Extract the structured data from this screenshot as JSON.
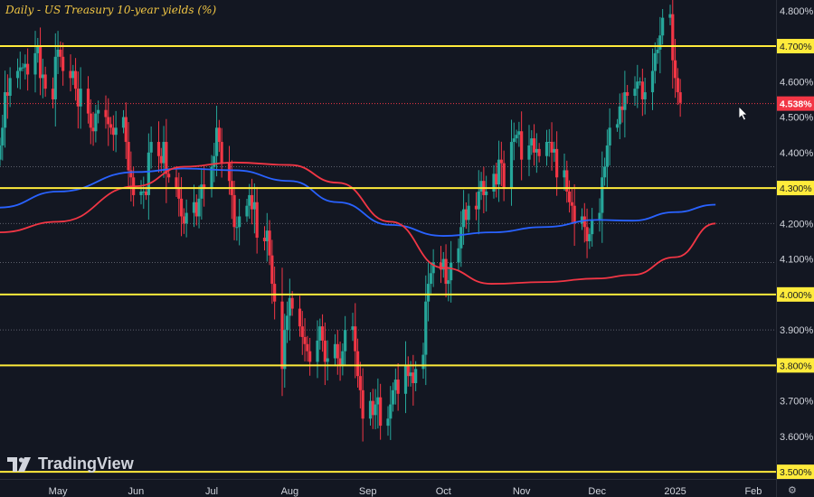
{
  "chart_data": {
    "type": "candlestick",
    "title": "Daily - US Treasury 10-year yields (%)",
    "ylim": [
      3.48,
      4.83
    ],
    "y_ticks": [
      "4.800%",
      "4.700%",
      "4.600%",
      "4.500%",
      "4.400%",
      "4.300%",
      "4.200%",
      "4.100%",
      "4.000%",
      "3.900%",
      "3.800%",
      "3.700%",
      "3.600%",
      "3.500%"
    ],
    "y_tick_values": [
      4.8,
      4.7,
      4.6,
      4.5,
      4.4,
      4.3,
      4.2,
      4.1,
      4.0,
      3.9,
      3.8,
      3.7,
      3.6,
      3.5
    ],
    "x_tick_labels": [
      "May",
      "Jun",
      "Jul",
      "Aug",
      "Sep",
      "Oct",
      "Nov",
      "Dec",
      "2025",
      "Feb"
    ],
    "x_tick_dates": [
      "2024-05-01",
      "2024-06-01",
      "2024-07-01",
      "2024-08-01",
      "2024-09-01",
      "2024-10-01",
      "2024-11-01",
      "2024-12-01",
      "2025-01-01",
      "2025-02-01"
    ],
    "x_range_dates": [
      "2024-04-08",
      "2025-02-10"
    ],
    "horizontal_levels": [
      {
        "value": 4.7,
        "label": "4.700%",
        "color": "#ffeb3b"
      },
      {
        "value": 4.3,
        "label": "4.300%",
        "color": "#ffeb3b"
      },
      {
        "value": 4.0,
        "label": "4.000%",
        "color": "#ffeb3b"
      },
      {
        "value": 3.8,
        "label": "3.800%",
        "color": "#ffeb3b"
      },
      {
        "value": 3.5,
        "label": "3.500%",
        "color": "#ffeb3b"
      }
    ],
    "dotted_levels": [
      4.36,
      4.2,
      4.09,
      3.9
    ],
    "current": {
      "value": 4.538,
      "label": "4.538%",
      "color": "#f23645"
    },
    "colors": {
      "up": "#26a69a",
      "down": "#f23645",
      "ma_blue": "#2962ff",
      "ma_red": "#f23645"
    },
    "ma_blue": {
      "x": [
        "2024-04-08",
        "2024-05-01",
        "2024-06-01",
        "2024-06-20",
        "2024-07-10",
        "2024-08-01",
        "2024-08-20",
        "2024-09-10",
        "2024-10-01",
        "2024-10-20",
        "2024-11-10",
        "2024-12-01",
        "2024-12-15",
        "2025-01-01",
        "2025-01-17"
      ],
      "y": [
        4.245,
        4.29,
        4.345,
        4.355,
        4.35,
        4.32,
        4.26,
        4.196,
        4.165,
        4.175,
        4.19,
        4.21,
        4.208,
        4.232,
        4.253
      ]
    },
    "ma_red": {
      "x": [
        "2024-04-08",
        "2024-05-01",
        "2024-06-01",
        "2024-06-20",
        "2024-07-10",
        "2024-08-01",
        "2024-08-20",
        "2024-09-10",
        "2024-10-01",
        "2024-10-20",
        "2024-11-10",
        "2024-12-01",
        "2024-12-15",
        "2025-01-01",
        "2025-01-17"
      ],
      "y": [
        4.175,
        4.205,
        4.305,
        4.36,
        4.372,
        4.365,
        4.315,
        4.205,
        4.075,
        4.03,
        4.035,
        4.045,
        4.055,
        4.105,
        4.2
      ]
    },
    "candles": {
      "start_date": "2024-04-08",
      "trading_days_only": true,
      "close": [
        4.42,
        4.47,
        4.57,
        4.56,
        4.61,
        4.63,
        4.64,
        4.64,
        4.65,
        4.62,
        4.68,
        4.7,
        4.61,
        4.62,
        4.58,
        4.55,
        4.67,
        4.69,
        4.67,
        4.63,
        4.61,
        4.63,
        4.58,
        4.53,
        4.58,
        4.51,
        4.47,
        4.46,
        4.51,
        4.52,
        4.5,
        4.48,
        4.47,
        4.45,
        4.47,
        4.5,
        4.43,
        4.35,
        4.33,
        4.28,
        4.29,
        4.29,
        4.28,
        4.4,
        4.43,
        4.39,
        4.37,
        4.43,
        4.34,
        4.33,
        4.3,
        4.27,
        4.22,
        4.2,
        4.23,
        4.26,
        4.22,
        4.27,
        4.31,
        4.3,
        4.36,
        4.39,
        4.47,
        4.43,
        4.37,
        4.32,
        4.28,
        4.19,
        4.19,
        4.22,
        4.25,
        4.28,
        4.24,
        4.26,
        4.16,
        4.15,
        4.18,
        4.11,
        4.03,
        3.98,
        3.79,
        3.9,
        3.94,
        3.99,
        3.96,
        3.91,
        3.88,
        3.86,
        3.84,
        3.81,
        3.87,
        3.91,
        3.87,
        3.81,
        3.82,
        3.86,
        3.82,
        3.8,
        3.84,
        3.9,
        3.91,
        3.84,
        3.77,
        3.73,
        3.65,
        3.7,
        3.66,
        3.69,
        3.71,
        3.63,
        3.65,
        3.69,
        3.73,
        3.76,
        3.72,
        3.8,
        3.77,
        3.78,
        3.75,
        3.79,
        3.83,
        3.98,
        4.03,
        4.06,
        4.09,
        4.07,
        4.1,
        4.03,
        4.04,
        4.09,
        4.13,
        4.19,
        4.24,
        4.21,
        4.25,
        4.24,
        4.29,
        4.32,
        4.28,
        4.29,
        4.34,
        4.31,
        4.38,
        4.37,
        4.3,
        4.43,
        4.44,
        4.45,
        4.46,
        4.38,
        4.42,
        4.44,
        4.4,
        4.41,
        4.39,
        4.43,
        4.43,
        4.4,
        4.41,
        4.33,
        4.35,
        4.29,
        4.26,
        4.25,
        4.2,
        4.22,
        4.19,
        4.15,
        4.17,
        4.21,
        4.23,
        4.33,
        4.36,
        4.42,
        4.47,
        4.48,
        4.53,
        4.52,
        4.57,
        4.56,
        4.58,
        4.6,
        4.6,
        4.55,
        4.57,
        4.63,
        4.68,
        4.69,
        4.73,
        4.78,
        4.79,
        4.66,
        4.61,
        4.57,
        4.54
      ],
      "open": [
        4.38,
        4.42,
        4.47,
        4.57,
        4.56,
        4.61,
        4.63,
        4.64,
        4.64,
        4.65,
        4.62,
        4.68,
        4.7,
        4.61,
        4.62,
        4.58,
        4.55,
        4.67,
        4.69,
        4.67,
        4.63,
        4.61,
        4.63,
        4.58,
        4.53,
        4.58,
        4.51,
        4.47,
        4.46,
        4.51,
        4.52,
        4.5,
        4.48,
        4.47,
        4.45,
        4.47,
        4.5,
        4.43,
        4.35,
        4.33,
        4.28,
        4.29,
        4.29,
        4.28,
        4.4,
        4.43,
        4.39,
        4.37,
        4.43,
        4.34,
        4.33,
        4.3,
        4.27,
        4.22,
        4.2,
        4.23,
        4.26,
        4.22,
        4.27,
        4.31,
        4.3,
        4.36,
        4.39,
        4.47,
        4.43,
        4.37,
        4.32,
        4.28,
        4.19,
        4.19,
        4.22,
        4.25,
        4.28,
        4.24,
        4.26,
        4.16,
        4.15,
        4.18,
        4.11,
        4.03,
        3.98,
        3.79,
        3.9,
        3.94,
        3.99,
        3.96,
        3.91,
        3.88,
        3.86,
        3.84,
        3.81,
        3.87,
        3.91,
        3.87,
        3.81,
        3.82,
        3.86,
        3.82,
        3.8,
        3.84,
        3.9,
        3.91,
        3.84,
        3.77,
        3.73,
        3.65,
        3.7,
        3.66,
        3.69,
        3.71,
        3.63,
        3.65,
        3.69,
        3.73,
        3.76,
        3.72,
        3.8,
        3.77,
        3.78,
        3.75,
        3.79,
        3.83,
        3.98,
        4.03,
        4.06,
        4.09,
        4.07,
        4.1,
        4.03,
        4.04,
        4.09,
        4.13,
        4.19,
        4.24,
        4.21,
        4.25,
        4.24,
        4.29,
        4.32,
        4.28,
        4.29,
        4.34,
        4.31,
        4.38,
        4.37,
        4.3,
        4.43,
        4.44,
        4.45,
        4.46,
        4.38,
        4.42,
        4.44,
        4.4,
        4.41,
        4.39,
        4.43,
        4.43,
        4.4,
        4.41,
        4.33,
        4.35,
        4.29,
        4.26,
        4.25,
        4.2,
        4.22,
        4.19,
        4.15,
        4.17,
        4.21,
        4.23,
        4.33,
        4.36,
        4.42,
        4.47,
        4.48,
        4.53,
        4.52,
        4.57,
        4.56,
        4.58,
        4.6,
        4.6,
        4.55,
        4.57,
        4.63,
        4.68,
        4.69,
        4.73,
        4.78,
        4.79,
        4.66,
        4.61,
        4.57
      ]
    }
  },
  "branding": {
    "name": "TradingView"
  },
  "corner_icon": "gear-icon"
}
